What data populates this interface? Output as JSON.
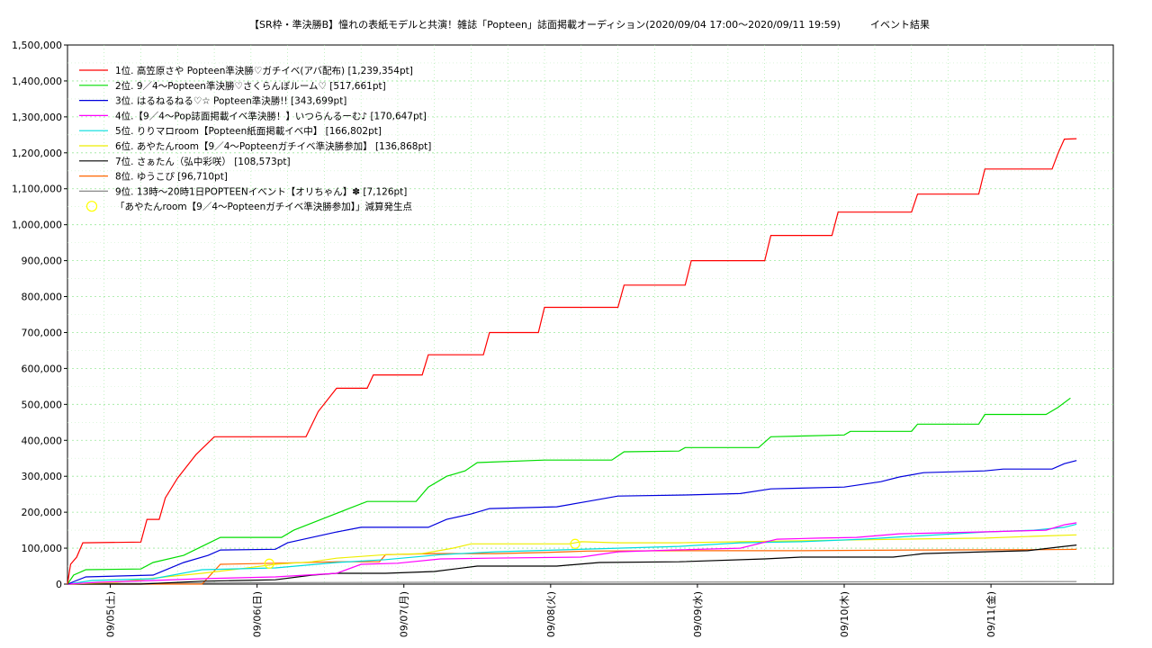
{
  "chart_data": {
    "type": "line",
    "title": "【SR枠・準決勝B】憧れの表紙モデルと共演！雑誌「Popteen」誌面掲載オーディション(2020/09/04 17:00〜2020/09/11 19:59)　　　イベント結果",
    "ylim": [
      0,
      1500000
    ],
    "y_ticks": [
      "0",
      "100,000",
      "200,000",
      "300,000",
      "400,000",
      "500,000",
      "600,000",
      "700,000",
      "800,000",
      "900,000",
      "1,000,000",
      "1,100,000",
      "1,200,000",
      "1,300,000",
      "1,400,000",
      "1,500,000"
    ],
    "x_ticks": [
      "09/05(土)",
      "09/06(日)",
      "09/07(月)",
      "09/08(火)",
      "09/09(水)",
      "09/10(木)",
      "09/11(金)"
    ],
    "x_unit": "hours since 2020/09/04 17:00",
    "xlim": [
      0,
      171
    ],
    "grid": true,
    "legend_position": "top-left",
    "series": [
      {
        "name": "1位. 高笠原さや Popteen準決勝♡ガチイベ(アバ配布) [1,239,354pt]",
        "color": "#ff0000",
        "points": [
          [
            0,
            0
          ],
          [
            0.5,
            55000
          ],
          [
            1.5,
            75000
          ],
          [
            2.5,
            115000
          ],
          [
            12,
            117000
          ],
          [
            13,
            180000
          ],
          [
            15,
            180000
          ],
          [
            16,
            240000
          ],
          [
            18,
            295000
          ],
          [
            21,
            360000
          ],
          [
            24,
            410000
          ],
          [
            39,
            410000
          ],
          [
            41,
            480000
          ],
          [
            44,
            545000
          ],
          [
            49,
            545000
          ],
          [
            50,
            582000
          ],
          [
            58,
            582000
          ],
          [
            59,
            638000
          ],
          [
            68,
            638000
          ],
          [
            69,
            700000
          ],
          [
            77,
            700000
          ],
          [
            78,
            770000
          ],
          [
            90,
            770000
          ],
          [
            91,
            832000
          ],
          [
            101,
            832000
          ],
          [
            102,
            900000
          ],
          [
            114,
            900000
          ],
          [
            115,
            970000
          ],
          [
            125,
            970000
          ],
          [
            126,
            1035000
          ],
          [
            138,
            1035000
          ],
          [
            139,
            1085000
          ],
          [
            149,
            1085000
          ],
          [
            150,
            1155000
          ],
          [
            161,
            1155000
          ],
          [
            162,
            1200000
          ],
          [
            163,
            1238000
          ],
          [
            165,
            1239354
          ]
        ]
      },
      {
        "name": "2位. 9／4〜Popteen準決勝♡さくらんぼルーム♡ [517,661pt]",
        "color": "#00dd00",
        "points": [
          [
            0,
            0
          ],
          [
            1,
            25000
          ],
          [
            3,
            40000
          ],
          [
            12,
            42000
          ],
          [
            14,
            60000
          ],
          [
            19,
            80000
          ],
          [
            22,
            105000
          ],
          [
            25,
            130000
          ],
          [
            35,
            130000
          ],
          [
            37,
            150000
          ],
          [
            40,
            170000
          ],
          [
            43,
            190000
          ],
          [
            46,
            210000
          ],
          [
            49,
            230000
          ],
          [
            57,
            230000
          ],
          [
            59,
            270000
          ],
          [
            62,
            300000
          ],
          [
            65,
            315000
          ],
          [
            67,
            338000
          ],
          [
            78,
            345000
          ],
          [
            89,
            345000
          ],
          [
            91,
            368000
          ],
          [
            100,
            370000
          ],
          [
            101,
            380000
          ],
          [
            113,
            380000
          ],
          [
            115,
            410000
          ],
          [
            127,
            415000
          ],
          [
            128,
            425000
          ],
          [
            138,
            425000
          ],
          [
            139,
            445000
          ],
          [
            149,
            445000
          ],
          [
            150,
            472000
          ],
          [
            160,
            472000
          ],
          [
            162,
            492000
          ],
          [
            164,
            517661
          ]
        ]
      },
      {
        "name": "3位. はるねるねる♡☆ Popteen準決勝!! [343,699pt]",
        "color": "#0000dd",
        "points": [
          [
            0,
            0
          ],
          [
            3,
            20000
          ],
          [
            14,
            25000
          ],
          [
            19,
            60000
          ],
          [
            23,
            80000
          ],
          [
            25,
            95000
          ],
          [
            34,
            97000
          ],
          [
            36,
            115000
          ],
          [
            40,
            130000
          ],
          [
            44,
            145000
          ],
          [
            48,
            158000
          ],
          [
            59,
            158000
          ],
          [
            62,
            180000
          ],
          [
            66,
            195000
          ],
          [
            69,
            210000
          ],
          [
            80,
            215000
          ],
          [
            85,
            230000
          ],
          [
            90,
            245000
          ],
          [
            101,
            248000
          ],
          [
            110,
            252000
          ],
          [
            115,
            265000
          ],
          [
            127,
            270000
          ],
          [
            133,
            285000
          ],
          [
            136,
            298000
          ],
          [
            140,
            310000
          ],
          [
            150,
            315000
          ],
          [
            153,
            320000
          ],
          [
            161,
            320000
          ],
          [
            163,
            335000
          ],
          [
            165,
            343699
          ]
        ]
      },
      {
        "name": "4位.【9／4〜Pop誌面掲載イベ準決勝！】いつらんるーむ♪ [170,647pt]",
        "color": "#ff00ff",
        "points": [
          [
            0,
            0
          ],
          [
            5,
            5000
          ],
          [
            14,
            10000
          ],
          [
            22,
            15000
          ],
          [
            34,
            20000
          ],
          [
            44,
            30000
          ],
          [
            48,
            55000
          ],
          [
            54,
            58000
          ],
          [
            61,
            70000
          ],
          [
            69,
            72000
          ],
          [
            84,
            75000
          ],
          [
            90,
            90000
          ],
          [
            99,
            95000
          ],
          [
            110,
            100000
          ],
          [
            116,
            125000
          ],
          [
            123,
            128000
          ],
          [
            129,
            130000
          ],
          [
            136,
            140000
          ],
          [
            149,
            145000
          ],
          [
            160,
            150000
          ],
          [
            163,
            165000
          ],
          [
            165,
            170647
          ]
        ]
      },
      {
        "name": "5位. りりマロroom【Popteen紙面掲載イベ中】 [166,802pt]",
        "color": "#00dddd",
        "points": [
          [
            0,
            0
          ],
          [
            4,
            10000
          ],
          [
            14,
            15000
          ],
          [
            22,
            40000
          ],
          [
            34,
            45000
          ],
          [
            44,
            60000
          ],
          [
            52,
            68000
          ],
          [
            61,
            82000
          ],
          [
            70,
            90000
          ],
          [
            80,
            95000
          ],
          [
            90,
            100000
          ],
          [
            100,
            105000
          ],
          [
            110,
            115000
          ],
          [
            120,
            118000
          ],
          [
            130,
            125000
          ],
          [
            140,
            135000
          ],
          [
            150,
            145000
          ],
          [
            158,
            150000
          ],
          [
            163,
            158000
          ],
          [
            165,
            166802
          ]
        ]
      },
      {
        "name": "6位. あやたんroom【9／4〜Popteenガチイベ準決勝参加】 [136,868pt]",
        "color": "#eeee00",
        "points": [
          [
            0,
            0
          ],
          [
            8,
            5000
          ],
          [
            16,
            20000
          ],
          [
            22,
            30000
          ],
          [
            28,
            42000
          ],
          [
            34,
            55000
          ],
          [
            40,
            62000
          ],
          [
            44,
            72000
          ],
          [
            52,
            82000
          ],
          [
            58,
            85000
          ],
          [
            63,
            100000
          ],
          [
            66,
            112000
          ],
          [
            82,
            112000
          ],
          [
            84,
            118000
          ],
          [
            90,
            115000
          ],
          [
            100,
            115000
          ],
          [
            110,
            118000
          ],
          [
            125,
            122000
          ],
          [
            136,
            125000
          ],
          [
            150,
            128000
          ],
          [
            158,
            133000
          ],
          [
            165,
            136868
          ]
        ]
      },
      {
        "name": "7位. さぁたん（弘中彩咲） [108,573pt]",
        "color": "#000000",
        "points": [
          [
            0,
            0
          ],
          [
            12,
            0
          ],
          [
            22,
            8000
          ],
          [
            34,
            12000
          ],
          [
            40,
            25000
          ],
          [
            44,
            30000
          ],
          [
            52,
            30000
          ],
          [
            60,
            35000
          ],
          [
            67,
            50000
          ],
          [
            80,
            50000
          ],
          [
            87,
            60000
          ],
          [
            100,
            62000
          ],
          [
            114,
            70000
          ],
          [
            120,
            75000
          ],
          [
            135,
            75000
          ],
          [
            140,
            85000
          ],
          [
            150,
            90000
          ],
          [
            157,
            93000
          ],
          [
            163,
            105000
          ],
          [
            165,
            108573
          ]
        ]
      },
      {
        "name": "8位. ゆうこぴ [96,710pt]",
        "color": "#ff6600",
        "points": [
          [
            0,
            0
          ],
          [
            22,
            0
          ],
          [
            25,
            55000
          ],
          [
            34,
            58000
          ],
          [
            44,
            62000
          ],
          [
            51,
            62000
          ],
          [
            52,
            82000
          ],
          [
            60,
            85000
          ],
          [
            70,
            85000
          ],
          [
            78,
            88000
          ],
          [
            85,
            92000
          ],
          [
            100,
            93000
          ],
          [
            120,
            93000
          ],
          [
            140,
            95000
          ],
          [
            160,
            96000
          ],
          [
            165,
            96710
          ]
        ]
      },
      {
        "name": "9位. 13時〜20時1日POPTEENイベント【オリちゃん】✽ [7,126pt]",
        "color": "#888888",
        "points": [
          [
            0,
            0
          ],
          [
            10,
            2000
          ],
          [
            30,
            4000
          ],
          [
            60,
            5000
          ],
          [
            90,
            5500
          ],
          [
            120,
            6000
          ],
          [
            150,
            6800
          ],
          [
            165,
            7126
          ]
        ]
      }
    ],
    "markers": {
      "name": "「あやたんroom【9／4〜Popteenガチイベ準決勝参加】」減算発生点",
      "color": "#ffff00",
      "points": [
        [
          33,
          57000
        ],
        [
          83,
          112000
        ]
      ]
    }
  }
}
